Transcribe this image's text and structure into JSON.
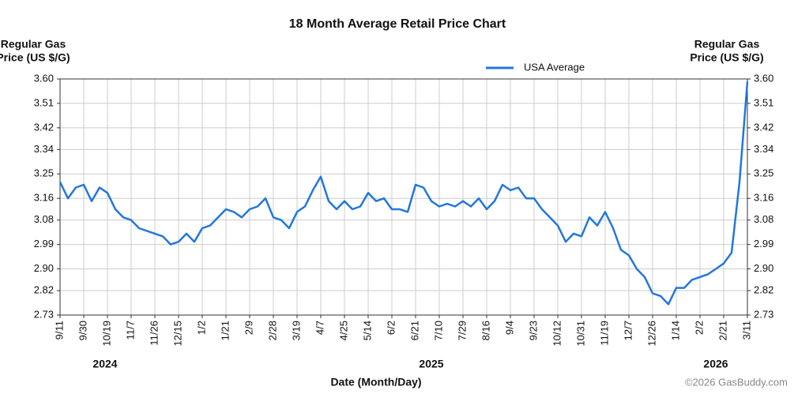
{
  "chart_data": {
    "type": "line",
    "title": "18 Month Average Retail Price Chart",
    "y_label": [
      "Regular Gas",
      "Price (US $/G)"
    ],
    "x_label": "Date (Month/Day)",
    "year_labels": [
      "2024",
      "2025",
      "2026"
    ],
    "credit": "©2026 GasBuddy.com",
    "categories": [
      "9/11",
      null,
      null,
      "9/30",
      null,
      null,
      "10/19",
      null,
      null,
      "11/7",
      null,
      null,
      "11/26",
      null,
      null,
      "12/15",
      null,
      null,
      "1/2",
      null,
      null,
      "1/21",
      null,
      null,
      "2/9",
      null,
      null,
      "2/28",
      null,
      null,
      "3/19",
      null,
      null,
      "4/7",
      null,
      null,
      "4/25",
      null,
      null,
      "5/14",
      null,
      null,
      "6/2",
      null,
      null,
      "6/21",
      null,
      null,
      "7/10",
      null,
      null,
      "7/29",
      null,
      null,
      "8/16",
      null,
      null,
      "9/4",
      null,
      null,
      "9/23",
      null,
      null,
      "10/12",
      null,
      null,
      "10/31",
      null,
      null,
      "11/19",
      null,
      null,
      "12/7",
      null,
      null,
      "12/26",
      null,
      null,
      "1/14",
      null,
      null,
      "2/2",
      null,
      null,
      "2/21",
      null,
      null,
      "3/11"
    ],
    "series": [
      {
        "name": "USA Average",
        "color": "#2277dd",
        "values": [
          3.22,
          3.16,
          3.2,
          3.21,
          3.15,
          3.2,
          3.18,
          3.12,
          3.09,
          3.08,
          3.05,
          3.04,
          3.03,
          3.02,
          2.99,
          3.0,
          3.03,
          3.0,
          3.05,
          3.06,
          3.09,
          3.12,
          3.11,
          3.09,
          3.12,
          3.13,
          3.16,
          3.09,
          3.08,
          3.05,
          3.11,
          3.13,
          3.19,
          3.24,
          3.15,
          3.12,
          3.15,
          3.12,
          3.13,
          3.18,
          3.15,
          3.16,
          3.12,
          3.12,
          3.11,
          3.21,
          3.2,
          3.15,
          3.13,
          3.14,
          3.13,
          3.15,
          3.13,
          3.16,
          3.12,
          3.15,
          3.21,
          3.19,
          3.2,
          3.16,
          3.16,
          3.12,
          3.09,
          3.06,
          3.0,
          3.03,
          3.02,
          3.09,
          3.06,
          3.11,
          3.05,
          2.97,
          2.95,
          2.9,
          2.87,
          2.81,
          2.8,
          2.77,
          2.83,
          2.83,
          2.86,
          2.87,
          2.88,
          2.9,
          2.92,
          2.96,
          3.22,
          3.59
        ]
      }
    ],
    "ylim": [
      2.73,
      3.6
    ],
    "yticks": [
      2.73,
      2.82,
      {
        "value": 2.9,
        "label": "2.90"
      },
      2.99,
      3.08,
      3.16,
      3.25,
      3.34,
      3.42,
      3.51,
      {
        "value": 3.6,
        "label": "3.60"
      }
    ],
    "grid": true
  }
}
